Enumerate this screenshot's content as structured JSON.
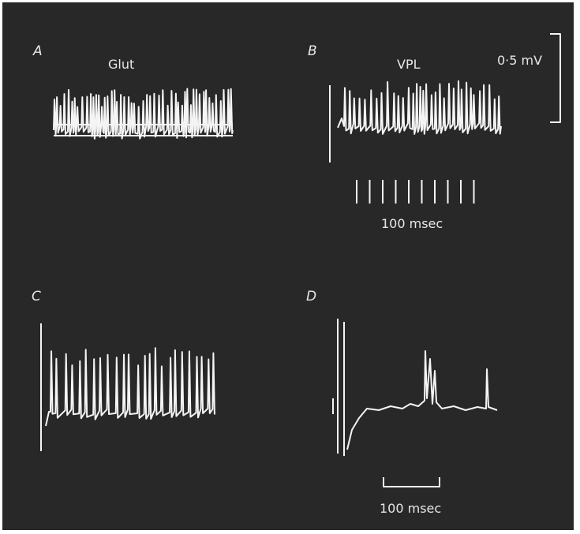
{
  "panels": [
    {
      "label": "A",
      "title": "Glut"
    },
    {
      "label": "B",
      "title": "VPL"
    },
    {
      "label": "C"
    },
    {
      "label": "D"
    }
  ],
  "scale_bars": {
    "voltage": "0·5 mV",
    "time_b": "100 msec",
    "time_d": "100 msec"
  }
}
